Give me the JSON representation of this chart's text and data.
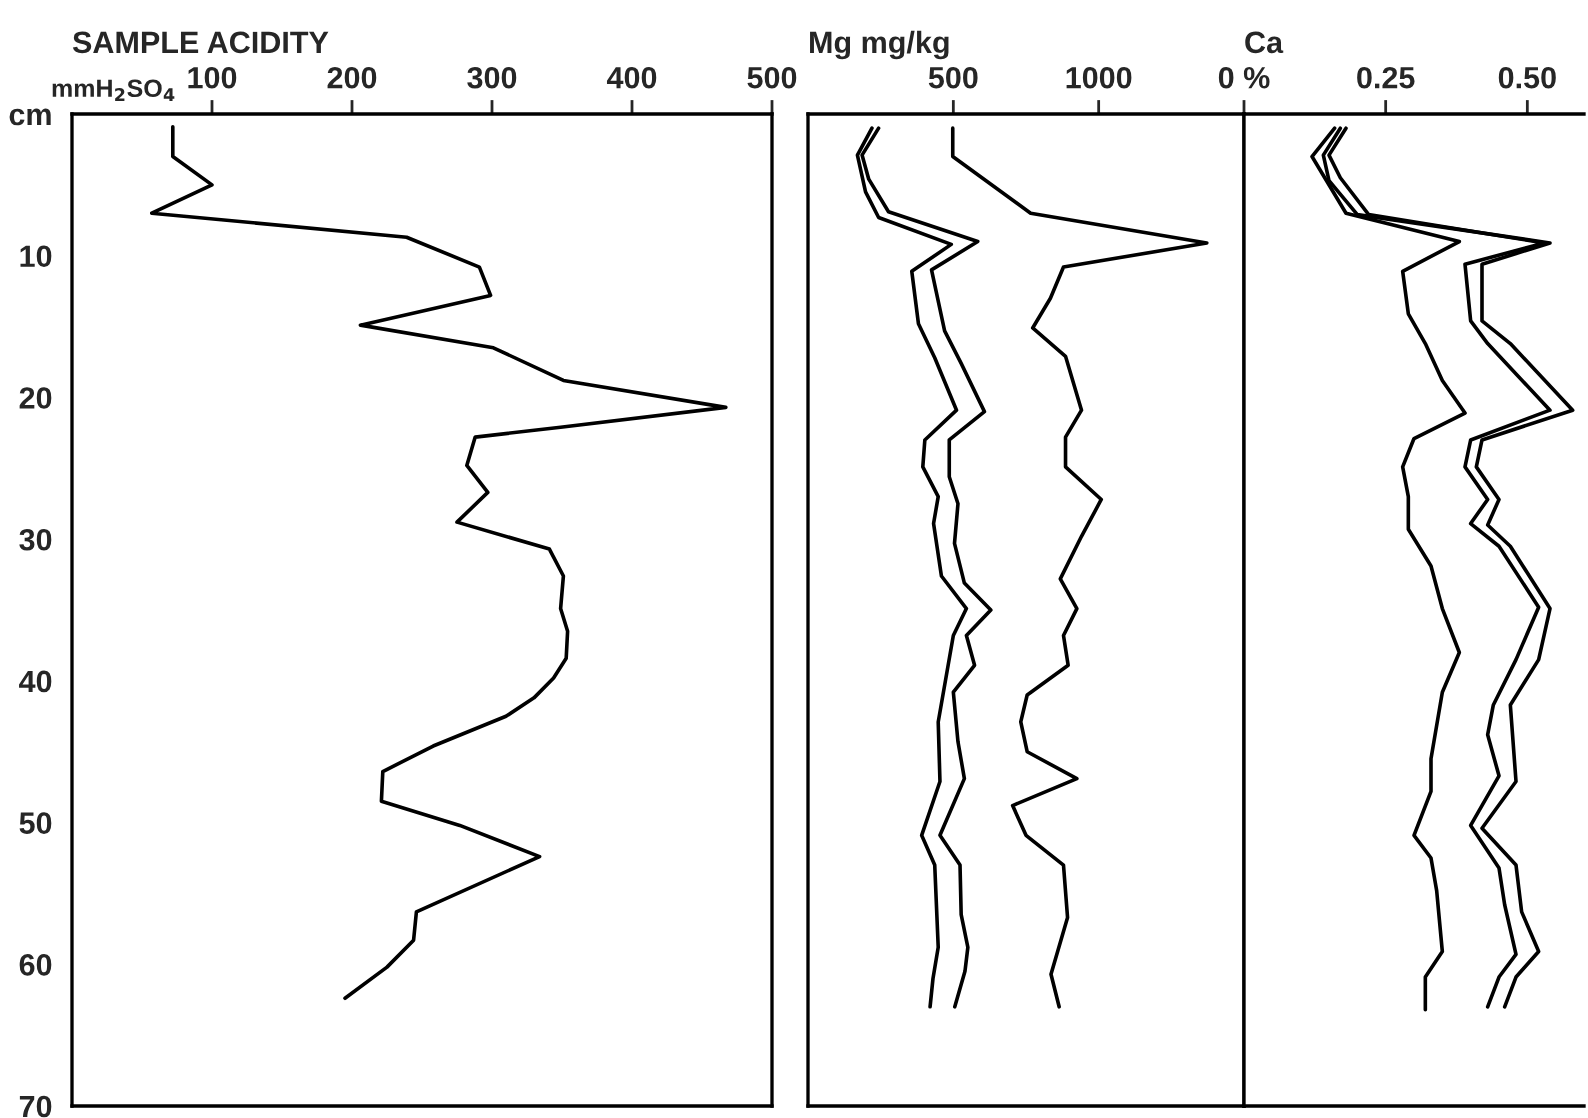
{
  "chart_data": [
    {
      "type": "line",
      "orientation": "horizontal",
      "title": "SAMPLE ACIDITY",
      "xlabel": "mmH$_{2}$SO$_{4}$",
      "xlim": [
        0,
        500
      ],
      "xticks": [
        100,
        200,
        300,
        400,
        500
      ],
      "ylim": [
        70,
        0
      ],
      "yticks": [
        {
          "value": 0,
          "label": "cm"
        },
        10,
        20,
        30,
        40,
        50,
        60,
        70
      ],
      "series": [
        {
          "color": "#000000",
          "x": [
            0.9,
            3.0,
            5.0,
            7.0,
            8.7,
            10.8,
            12.8,
            14.9,
            16.5,
            18.8,
            20.7,
            22.1,
            22.8,
            24.8,
            26.7,
            28.8,
            30.7,
            32.6,
            34.9,
            36.5,
            38.4,
            39.8,
            41.2,
            42.5,
            44.6,
            46.4,
            48.5,
            50.2,
            52.4,
            56.3,
            58.3,
            60.2,
            62.4
          ],
          "values": [
            72,
            72,
            100,
            57,
            239,
            291,
            299,
            206,
            301,
            351,
            467,
            349,
            288,
            282,
            297,
            275,
            341,
            351,
            349,
            354,
            353,
            344,
            330,
            310,
            258,
            222,
            221,
            277,
            334,
            246,
            244,
            225,
            195
          ]
        }
      ]
    },
    {
      "type": "line",
      "orientation": "horizontal",
      "title": "Mg mg/kg",
      "xlim": [
        0,
        1500
      ],
      "xticks": [
        500,
        1000
      ],
      "ylim": [
        70,
        0
      ],
      "yticks": [
        0,
        10,
        20,
        30,
        40,
        50,
        60,
        70
      ],
      "tick_labels": "x",
      "series": [
        {
          "color": "#000000",
          "x": [
            1.0,
            2.9,
            5.5,
            7.3,
            9.2,
            11.1,
            14.8,
            17.2,
            20.9,
            23.0,
            24.9,
            27.0,
            28.9,
            32.6,
            34.9,
            36.8,
            42.9,
            47.1,
            50.9,
            53.0,
            58.8,
            61.0,
            63.0
          ],
          "values": [
            220,
            170,
            198,
            243,
            493,
            357,
            380,
            436,
            511,
            402,
            395,
            448,
            432,
            459,
            545,
            500,
            448,
            454,
            391,
            436,
            448,
            430,
            420
          ]
        },
        {
          "color": "#000000",
          "x": [
            1.0,
            2.9,
            4.6,
            6.9,
            9.0,
            11.0,
            15.3,
            17.6,
            21.0,
            23.0,
            25.6,
            27.5,
            30.3,
            33.1,
            35.0,
            36.8,
            38.9,
            40.8,
            44.3,
            46.9,
            50.9,
            53.0,
            56.5,
            58.8,
            60.5,
            63.0
          ],
          "values": [
            243,
            186,
            209,
            277,
            584,
            425,
            470,
            527,
            607,
            486,
            486,
            516,
            504,
            538,
            629,
            545,
            573,
            500,
            516,
            538,
            454,
            523,
            527,
            550,
            540,
            505
          ]
        },
        {
          "color": "#000000",
          "x": [
            1.0,
            3.0,
            7.0,
            9.1,
            10.8,
            13.0,
            15.1,
            17.1,
            20.9,
            22.8,
            24.9,
            27.2,
            29.8,
            32.8,
            34.9,
            36.8,
            38.9,
            41.0,
            42.9,
            45.0,
            46.9,
            48.8,
            50.9,
            53.0,
            56.7,
            60.7,
            63.0
          ],
          "values": [
            498,
            498,
            766,
            1372,
            879,
            834,
            773,
            886,
            941,
            886,
            886,
            1009,
            941,
            868,
            925,
            879,
            895,
            754,
            732,
            754,
            925,
            704,
            750,
            879,
            893,
            836,
            864
          ]
        }
      ]
    },
    {
      "type": "line",
      "orientation": "horizontal",
      "title": "Ca",
      "xlim": [
        0,
        0.6
      ],
      "xticks": [
        {
          "value": 0,
          "label": "0 %"
        },
        {
          "value": 0.25,
          "label": "0.25"
        },
        {
          "value": 0.5,
          "label": "0.50"
        }
      ],
      "ylim": [
        70,
        0
      ],
      "yticks": [
        0,
        10,
        20,
        30,
        40,
        50,
        60,
        70
      ],
      "tick_labels": "x",
      "series": [
        {
          "color": "#000000",
          "x": [
            1.0,
            3.0,
            7.0,
            9.0,
            11.1,
            14.1,
            16.2,
            18.8,
            21.1,
            22.9,
            24.9,
            27.0,
            29.3,
            31.9,
            34.9,
            38.0,
            40.8,
            45.5,
            47.8,
            50.9,
            52.5,
            54.8,
            59.1,
            60.9,
            63.2
          ],
          "values": [
            0.16,
            0.12,
            0.18,
            0.38,
            0.28,
            0.29,
            0.32,
            0.35,
            0.39,
            0.3,
            0.28,
            0.29,
            0.29,
            0.33,
            0.35,
            0.38,
            0.35,
            0.33,
            0.33,
            0.3,
            0.33,
            0.34,
            0.35,
            0.32,
            0.32
          ]
        },
        {
          "color": "#000000",
          "x": [
            1.0,
            2.9,
            4.5,
            7.1,
            9.1,
            10.6,
            14.6,
            16.2,
            20.9,
            23.0,
            24.9,
            27.2,
            28.9,
            30.5,
            34.8,
            38.5,
            41.7,
            43.8,
            46.7,
            50.2,
            53.2,
            55.8,
            59.3,
            60.9,
            63.0
          ],
          "values": [
            0.18,
            0.15,
            0.17,
            0.22,
            0.53,
            0.39,
            0.4,
            0.43,
            0.54,
            0.4,
            0.39,
            0.43,
            0.4,
            0.45,
            0.52,
            0.48,
            0.44,
            0.43,
            0.45,
            0.4,
            0.45,
            0.46,
            0.48,
            0.45,
            0.43
          ]
        },
        {
          "color": "#000000",
          "x": [
            1.0,
            2.9,
            4.7,
            7.1,
            9.1,
            10.6,
            14.6,
            16.2,
            20.9,
            23.0,
            24.9,
            27.2,
            29.0,
            30.5,
            34.9,
            38.5,
            41.7,
            47.1,
            50.4,
            53.0,
            56.3,
            59.1,
            60.9,
            63.0
          ],
          "values": [
            0.17,
            0.14,
            0.15,
            0.2,
            0.54,
            0.42,
            0.42,
            0.47,
            0.58,
            0.42,
            0.41,
            0.45,
            0.43,
            0.47,
            0.54,
            0.52,
            0.47,
            0.48,
            0.42,
            0.48,
            0.49,
            0.52,
            0.48,
            0.46
          ]
        }
      ]
    }
  ]
}
